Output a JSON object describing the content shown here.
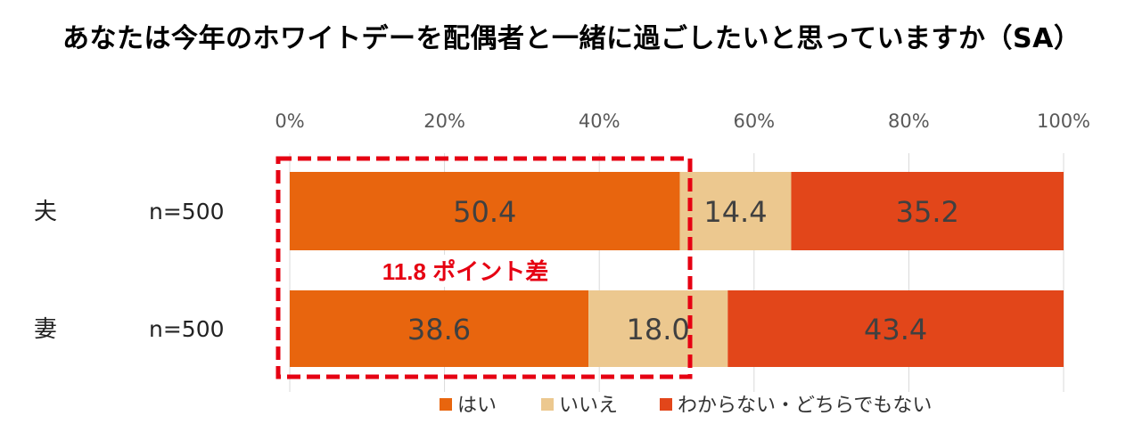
{
  "title": "あなたは今年のホワイトデーを配偶者と一緒に過ごしたいと思っていますか（SA）",
  "annotation": "11.8 ポイント差",
  "colors": {
    "yes": "#e8650e",
    "no": "#ecc88f",
    "unknown": "#e2461a",
    "highlight": "#e60012",
    "grid": "#d9d9d9"
  },
  "chart_data": {
    "type": "bar",
    "orientation": "horizontal",
    "stacked": "percent",
    "categories": [
      "夫",
      "妻"
    ],
    "n_labels": [
      "n=500",
      "n=500"
    ],
    "series": [
      {
        "name": "はい",
        "values": [
          50.4,
          38.6
        ]
      },
      {
        "name": "いいえ",
        "values": [
          14.4,
          18.0
        ]
      },
      {
        "name": "わからない・どちらでもない",
        "values": [
          35.2,
          43.4
        ]
      }
    ],
    "data_labels": [
      [
        "50.4",
        "38.6"
      ],
      [
        "14.4",
        "18.0"
      ],
      [
        "35.2",
        "43.4"
      ]
    ],
    "x_ticks": [
      "0%",
      "20%",
      "40%",
      "60%",
      "80%",
      "100%"
    ],
    "xlim": [
      0,
      100
    ],
    "grid": true,
    "legend_position": "bottom"
  }
}
